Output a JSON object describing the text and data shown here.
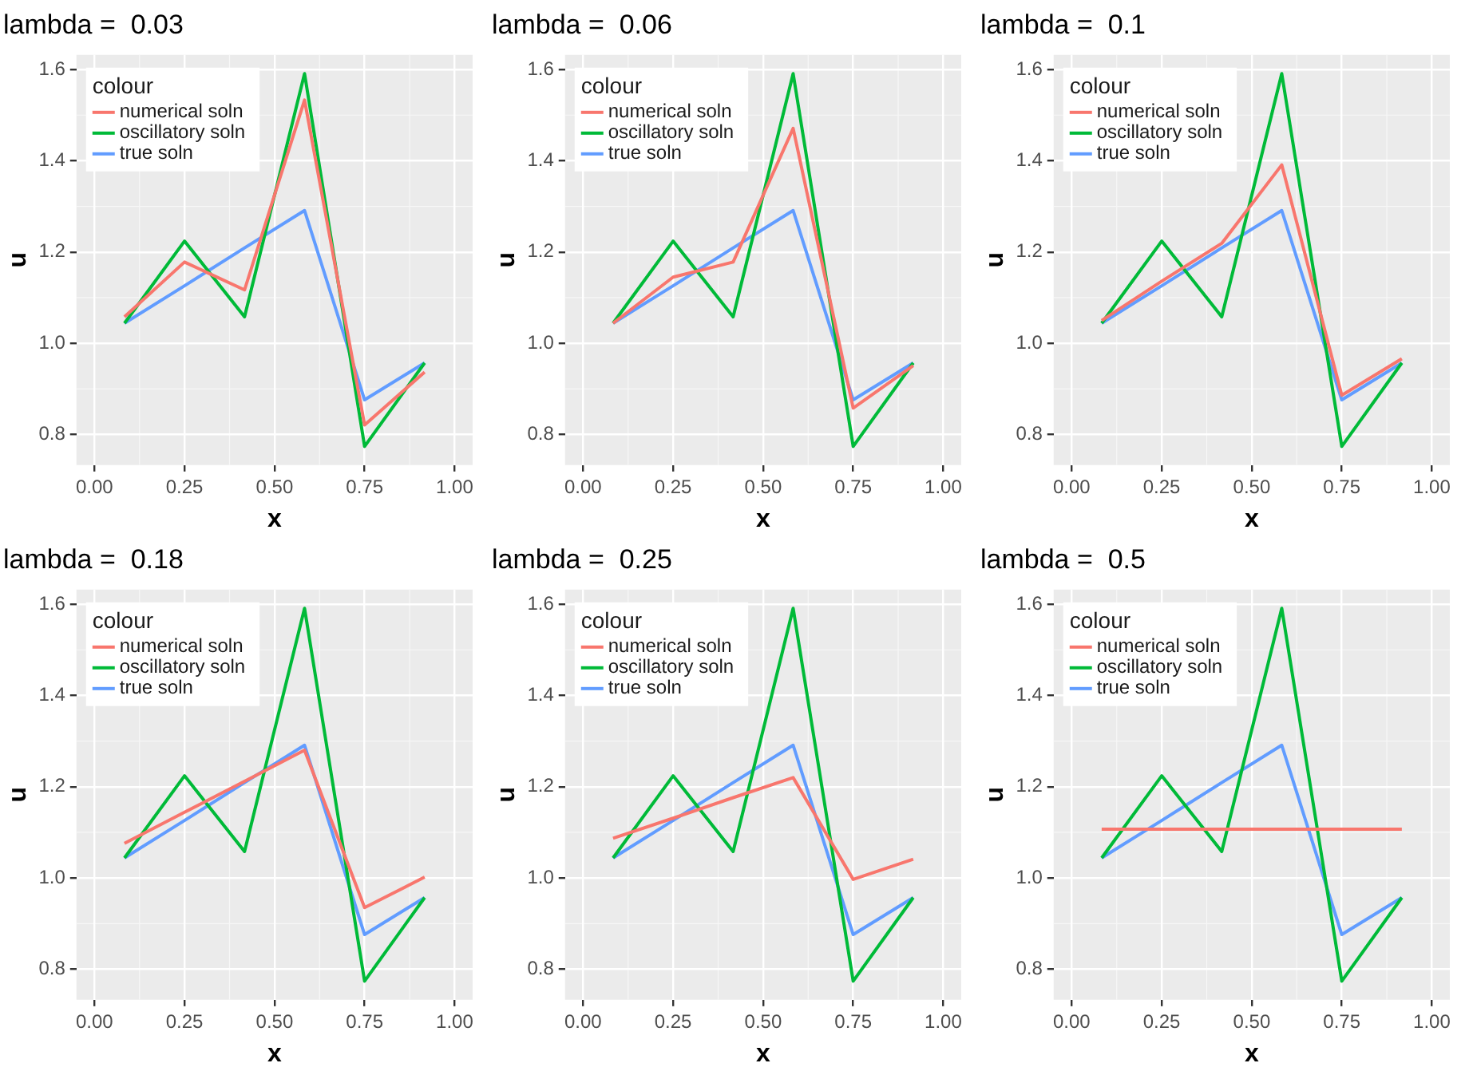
{
  "chart_data": [
    {
      "type": "line",
      "title": "lambda =  0.03",
      "xlabel": "x",
      "ylabel": "u",
      "legend": "top left",
      "legend_title": "colour",
      "grid": true,
      "line_style": "solid",
      "marker": "none",
      "x": [
        0.0833,
        0.25,
        0.4167,
        0.5833,
        0.75,
        0.9167
      ],
      "xlim": [
        -0.05,
        1.05
      ],
      "ylim": [
        0.733,
        1.632
      ],
      "xticks": [
        {
          "value": 0,
          "label": "0.00"
        },
        {
          "value": 0.25,
          "label": "0.25"
        },
        {
          "value": 0.5,
          "label": "0.50"
        },
        {
          "value": 0.75,
          "label": "0.75"
        },
        {
          "value": 1,
          "label": "1.00"
        }
      ],
      "yticks": [
        {
          "value": 0.8,
          "label": "0.8"
        },
        {
          "value": 1,
          "label": "1.0"
        },
        {
          "value": 1.2,
          "label": "1.2"
        },
        {
          "value": 1.4,
          "label": "1.4"
        },
        {
          "value": 1.6,
          "label": "1.6"
        }
      ],
      "series": [
        {
          "name": "numerical soln",
          "color": "#f8766d",
          "values": [
            1.058,
            1.178,
            1.117,
            1.533,
            0.821,
            0.937
          ]
        },
        {
          "name": "oscillatory soln",
          "color": "#00ba38",
          "values": [
            1.044,
            1.224,
            1.058,
            1.591,
            0.774,
            0.957
          ]
        },
        {
          "name": "true soln",
          "color": "#619cff",
          "values": [
            1.044,
            1.126,
            1.209,
            1.291,
            0.876,
            0.957
          ]
        }
      ]
    },
    {
      "type": "line",
      "title": "lambda =  0.06",
      "xlabel": "x",
      "ylabel": "u",
      "legend": "top left",
      "legend_title": "colour",
      "grid": true,
      "line_style": "solid",
      "marker": "none",
      "x": [
        0.0833,
        0.25,
        0.4167,
        0.5833,
        0.75,
        0.9167
      ],
      "xlim": [
        -0.05,
        1.05
      ],
      "ylim": [
        0.733,
        1.632
      ],
      "xticks": [
        {
          "value": 0,
          "label": "0.00"
        },
        {
          "value": 0.25,
          "label": "0.25"
        },
        {
          "value": 0.5,
          "label": "0.50"
        },
        {
          "value": 0.75,
          "label": "0.75"
        },
        {
          "value": 1,
          "label": "1.00"
        }
      ],
      "yticks": [
        {
          "value": 0.8,
          "label": "0.8"
        },
        {
          "value": 1,
          "label": "1.0"
        },
        {
          "value": 1.2,
          "label": "1.2"
        },
        {
          "value": 1.4,
          "label": "1.4"
        },
        {
          "value": 1.6,
          "label": "1.6"
        }
      ],
      "series": [
        {
          "name": "numerical soln",
          "color": "#f8766d",
          "values": [
            1.044,
            1.145,
            1.178,
            1.471,
            0.858,
            0.951
          ]
        },
        {
          "name": "oscillatory soln",
          "color": "#00ba38",
          "values": [
            1.044,
            1.224,
            1.058,
            1.591,
            0.774,
            0.957
          ]
        },
        {
          "name": "true soln",
          "color": "#619cff",
          "values": [
            1.044,
            1.126,
            1.209,
            1.291,
            0.876,
            0.957
          ]
        }
      ]
    },
    {
      "type": "line",
      "title": "lambda =  0.1",
      "xlabel": "x",
      "ylabel": "u",
      "legend": "top left",
      "legend_title": "colour",
      "grid": true,
      "line_style": "solid",
      "marker": "none",
      "x": [
        0.0833,
        0.25,
        0.4167,
        0.5833,
        0.75,
        0.9167
      ],
      "xlim": [
        -0.05,
        1.05
      ],
      "ylim": [
        0.733,
        1.632
      ],
      "xticks": [
        {
          "value": 0,
          "label": "0.00"
        },
        {
          "value": 0.25,
          "label": "0.25"
        },
        {
          "value": 0.5,
          "label": "0.50"
        },
        {
          "value": 0.75,
          "label": "0.75"
        },
        {
          "value": 1,
          "label": "1.00"
        }
      ],
      "yticks": [
        {
          "value": 0.8,
          "label": "0.8"
        },
        {
          "value": 1,
          "label": "1.0"
        },
        {
          "value": 1.2,
          "label": "1.2"
        },
        {
          "value": 1.4,
          "label": "1.4"
        },
        {
          "value": 1.6,
          "label": "1.6"
        }
      ],
      "series": [
        {
          "name": "numerical soln",
          "color": "#f8766d",
          "values": [
            1.05,
            1.136,
            1.219,
            1.391,
            0.886,
            0.966
          ]
        },
        {
          "name": "oscillatory soln",
          "color": "#00ba38",
          "values": [
            1.044,
            1.224,
            1.058,
            1.591,
            0.774,
            0.957
          ]
        },
        {
          "name": "true soln",
          "color": "#619cff",
          "values": [
            1.044,
            1.126,
            1.209,
            1.291,
            0.876,
            0.957
          ]
        }
      ]
    },
    {
      "type": "line",
      "title": "lambda =  0.18",
      "xlabel": "x",
      "ylabel": "u",
      "legend": "top left",
      "legend_title": "colour",
      "grid": true,
      "line_style": "solid",
      "marker": "none",
      "x": [
        0.0833,
        0.25,
        0.4167,
        0.5833,
        0.75,
        0.9167
      ],
      "xlim": [
        -0.05,
        1.05
      ],
      "ylim": [
        0.733,
        1.632
      ],
      "xticks": [
        {
          "value": 0,
          "label": "0.00"
        },
        {
          "value": 0.25,
          "label": "0.25"
        },
        {
          "value": 0.5,
          "label": "0.50"
        },
        {
          "value": 0.75,
          "label": "0.75"
        },
        {
          "value": 1,
          "label": "1.00"
        }
      ],
      "yticks": [
        {
          "value": 0.8,
          "label": "0.8"
        },
        {
          "value": 1,
          "label": "1.0"
        },
        {
          "value": 1.2,
          "label": "1.2"
        },
        {
          "value": 1.4,
          "label": "1.4"
        },
        {
          "value": 1.6,
          "label": "1.6"
        }
      ],
      "series": [
        {
          "name": "numerical soln",
          "color": "#f8766d",
          "values": [
            1.076,
            1.144,
            1.212,
            1.28,
            0.935,
            1.002
          ]
        },
        {
          "name": "oscillatory soln",
          "color": "#00ba38",
          "values": [
            1.044,
            1.224,
            1.058,
            1.591,
            0.774,
            0.957
          ]
        },
        {
          "name": "true soln",
          "color": "#619cff",
          "values": [
            1.044,
            1.126,
            1.209,
            1.291,
            0.876,
            0.957
          ]
        }
      ]
    },
    {
      "type": "line",
      "title": "lambda =  0.25",
      "xlabel": "x",
      "ylabel": "u",
      "legend": "top left",
      "legend_title": "colour",
      "grid": true,
      "line_style": "solid",
      "marker": "none",
      "x": [
        0.0833,
        0.25,
        0.4167,
        0.5833,
        0.75,
        0.9167
      ],
      "xlim": [
        -0.05,
        1.05
      ],
      "ylim": [
        0.733,
        1.632
      ],
      "xticks": [
        {
          "value": 0,
          "label": "0.00"
        },
        {
          "value": 0.25,
          "label": "0.25"
        },
        {
          "value": 0.5,
          "label": "0.50"
        },
        {
          "value": 0.75,
          "label": "0.75"
        },
        {
          "value": 1,
          "label": "1.00"
        }
      ],
      "yticks": [
        {
          "value": 0.8,
          "label": "0.8"
        },
        {
          "value": 1,
          "label": "1.0"
        },
        {
          "value": 1.2,
          "label": "1.2"
        },
        {
          "value": 1.4,
          "label": "1.4"
        },
        {
          "value": 1.6,
          "label": "1.6"
        }
      ],
      "series": [
        {
          "name": "numerical soln",
          "color": "#f8766d",
          "values": [
            1.087,
            1.131,
            1.176,
            1.22,
            0.997,
            1.041
          ]
        },
        {
          "name": "oscillatory soln",
          "color": "#00ba38",
          "values": [
            1.044,
            1.224,
            1.058,
            1.591,
            0.774,
            0.957
          ]
        },
        {
          "name": "true soln",
          "color": "#619cff",
          "values": [
            1.044,
            1.126,
            1.209,
            1.291,
            0.876,
            0.957
          ]
        }
      ]
    },
    {
      "type": "line",
      "title": "lambda =  0.5",
      "xlabel": "x",
      "ylabel": "u",
      "legend": "top left",
      "legend_title": "colour",
      "grid": true,
      "line_style": "solid",
      "marker": "none",
      "x": [
        0.0833,
        0.25,
        0.4167,
        0.5833,
        0.75,
        0.9167
      ],
      "xlim": [
        -0.05,
        1.05
      ],
      "ylim": [
        0.733,
        1.632
      ],
      "xticks": [
        {
          "value": 0,
          "label": "0.00"
        },
        {
          "value": 0.25,
          "label": "0.25"
        },
        {
          "value": 0.5,
          "label": "0.50"
        },
        {
          "value": 0.75,
          "label": "0.75"
        },
        {
          "value": 1,
          "label": "1.00"
        }
      ],
      "yticks": [
        {
          "value": 0.8,
          "label": "0.8"
        },
        {
          "value": 1,
          "label": "1.0"
        },
        {
          "value": 1.2,
          "label": "1.2"
        },
        {
          "value": 1.4,
          "label": "1.4"
        },
        {
          "value": 1.6,
          "label": "1.6"
        }
      ],
      "series": [
        {
          "name": "numerical soln",
          "color": "#f8766d",
          "values": [
            1.107,
            1.107,
            1.107,
            1.107,
            1.107,
            1.107
          ]
        },
        {
          "name": "oscillatory soln",
          "color": "#00ba38",
          "values": [
            1.044,
            1.224,
            1.058,
            1.591,
            0.774,
            0.957
          ]
        },
        {
          "name": "true soln",
          "color": "#619cff",
          "values": [
            1.044,
            1.126,
            1.209,
            1.291,
            0.876,
            0.957
          ]
        }
      ]
    }
  ]
}
